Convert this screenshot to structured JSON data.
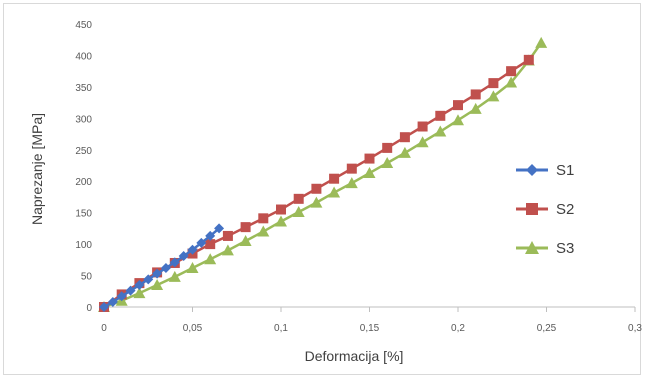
{
  "chart_data": {
    "type": "scatter",
    "title": "",
    "xlabel": "Deformacija [%]",
    "ylabel": "Naprezanje [MPa]",
    "xlim": [
      0,
      0.3
    ],
    "ylim": [
      0,
      450
    ],
    "x_ticks": [
      "0",
      "0,05",
      "0,1",
      "0,15",
      "0,2",
      "0,25",
      "0,3"
    ],
    "y_ticks": [
      "0",
      "50",
      "100",
      "150",
      "200",
      "250",
      "300",
      "350",
      "400",
      "450"
    ],
    "grid": false,
    "legend_position": "right",
    "series": [
      {
        "name": "S1",
        "color": "#4472c4",
        "marker": "diamond",
        "x": [
          0,
          0.005,
          0.01,
          0.015,
          0.02,
          0.025,
          0.03,
          0.035,
          0.04,
          0.045,
          0.05,
          0.055,
          0.06,
          0.065
        ],
        "y": [
          0,
          8,
          17,
          26,
          35,
          44,
          53,
          62,
          71,
          81,
          91,
          102,
          113,
          125
        ]
      },
      {
        "name": "S2",
        "color": "#c0504d",
        "marker": "square",
        "x": [
          0,
          0.01,
          0.02,
          0.03,
          0.04,
          0.05,
          0.06,
          0.07,
          0.08,
          0.09,
          0.1,
          0.11,
          0.12,
          0.13,
          0.14,
          0.15,
          0.16,
          0.17,
          0.18,
          0.19,
          0.2,
          0.21,
          0.22,
          0.23,
          0.24
        ],
        "y": [
          0,
          20,
          38,
          55,
          70,
          85,
          100,
          113,
          127,
          141,
          155,
          172,
          188,
          204,
          220,
          236,
          253,
          270,
          287,
          304,
          321,
          338,
          356,
          375,
          393
        ]
      },
      {
        "name": "S3",
        "color": "#9bbb59",
        "marker": "triangle",
        "x": [
          0,
          0.01,
          0.02,
          0.03,
          0.04,
          0.05,
          0.06,
          0.07,
          0.08,
          0.09,
          0.1,
          0.11,
          0.12,
          0.13,
          0.14,
          0.15,
          0.16,
          0.17,
          0.18,
          0.19,
          0.2,
          0.21,
          0.22,
          0.23,
          0.24,
          0.247
        ],
        "y": [
          0,
          10,
          22,
          35,
          48,
          62,
          76,
          90,
          105,
          120,
          136,
          151,
          166,
          182,
          197,
          213,
          229,
          245,
          262,
          279,
          297,
          315,
          335,
          357,
          392,
          420
        ]
      }
    ]
  }
}
